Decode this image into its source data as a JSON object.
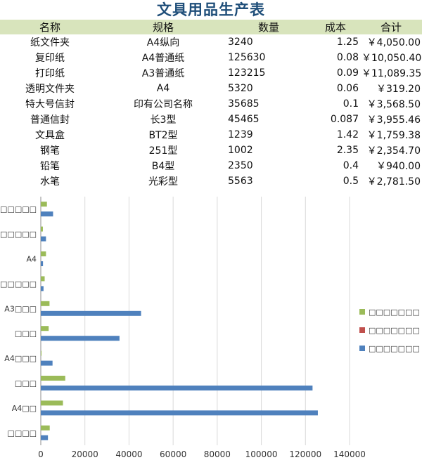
{
  "sheet": {
    "title": "文具用品生产表",
    "headers": [
      "名称",
      "规格",
      "数量",
      "成本",
      "合计"
    ],
    "rows": [
      {
        "name": "纸文件夹",
        "spec": "A4纵向",
        "qty": "3240",
        "cost": "1.25",
        "total": "￥4,050.00"
      },
      {
        "name": "复印纸",
        "spec": "A4普通纸",
        "qty": "125630",
        "cost": "0.08",
        "total": "￥10,050.40"
      },
      {
        "name": "打印纸",
        "spec": "A3普通纸",
        "qty": "123215",
        "cost": "0.09",
        "total": "￥11,089.35"
      },
      {
        "name": "透明文件夹",
        "spec": "A4",
        "qty": "5320",
        "cost": "0.06",
        "total": "￥319.20"
      },
      {
        "name": "特大号信封",
        "spec": "印有公司名称",
        "qty": "35685",
        "cost": "0.1",
        "total": "￥3,568.50"
      },
      {
        "name": "普通信封",
        "spec": "长3型",
        "qty": "45465",
        "cost": "0.087",
        "total": "￥3,955.46"
      },
      {
        "name": "文具盒",
        "spec": "BT2型",
        "qty": "1239",
        "cost": "1.42",
        "total": "￥1,759.38"
      },
      {
        "name": "钢笔",
        "spec": "251型",
        "qty": "1002",
        "cost": "2.35",
        "total": "￥2,354.70"
      },
      {
        "name": "铅笔",
        "spec": "B4型",
        "qty": "2350",
        "cost": "0.4",
        "total": "￥940.00"
      },
      {
        "name": "水笔",
        "spec": "光彩型",
        "qty": "5563",
        "cost": "0.5",
        "total": "￥2,781.50"
      }
    ]
  },
  "chart_data": {
    "type": "bar",
    "orientation": "horizontal",
    "categories": [
      "□□□□",
      "A4□□",
      "□□□",
      "A4□□□",
      "□□□",
      "A3□□□",
      "□□□□□",
      "A4",
      "□□□□□",
      "□□□□□□"
    ],
    "series": [
      {
        "name": "□□□□□□□ □□",
        "color": "#4f81bd",
        "values": [
          3240,
          125630,
          123215,
          5320,
          35685,
          45465,
          1239,
          1002,
          2350,
          5563
        ]
      },
      {
        "name": "□□□□□□□ □□",
        "color": "#c0504d",
        "values": [
          1.25,
          0.08,
          0.09,
          0.06,
          0.1,
          0.087,
          1.42,
          2.35,
          0.4,
          0.5
        ]
      },
      {
        "name": "□□□□□□□ □□",
        "color": "#9bbb59",
        "values": [
          4050,
          10050.4,
          11089.35,
          319.2,
          3568.5,
          3955.46,
          1759.38,
          2354.7,
          940,
          2781.5
        ]
      }
    ],
    "xlim": [
      0,
      140000
    ],
    "xticks": [
      "0",
      "20000",
      "40000",
      "60000",
      "80000",
      "100000",
      "120000",
      "140000"
    ],
    "grid": true,
    "legend_position": "right"
  }
}
